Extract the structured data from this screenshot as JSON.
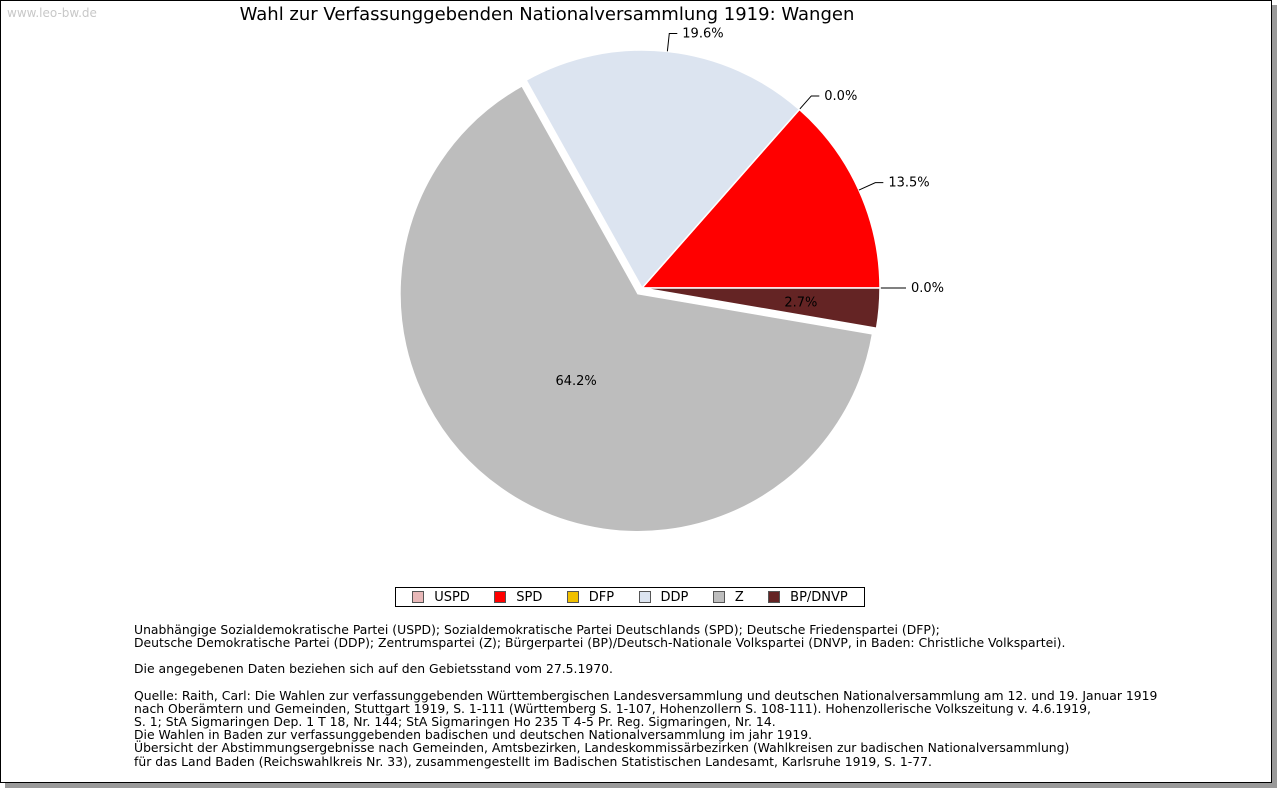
{
  "watermark": "www.leo-bw.de",
  "chart_data": {
    "type": "pie",
    "title": "Wahl zur Verfassunggebenden Nationalversammlung 1919: Wangen",
    "slices": [
      {
        "name": "USPD",
        "value": 0.0,
        "label": "0.0%",
        "color": "#e8b8b8"
      },
      {
        "name": "SPD",
        "value": 13.5,
        "label": "13.5%",
        "color": "#ff0000"
      },
      {
        "name": "DFP",
        "value": 0.0,
        "label": "0.0%",
        "color": "#f0c000"
      },
      {
        "name": "DDP",
        "value": 19.6,
        "label": "19.6%",
        "color": "#dce4f0"
      },
      {
        "name": "Z",
        "value": 64.2,
        "label": "64.2%",
        "color": "#bdbdbd"
      },
      {
        "name": "BP/DNVP",
        "value": 2.7,
        "label": "2.7%",
        "color": "#642424"
      }
    ],
    "legend": [
      "USPD",
      "SPD",
      "DFP",
      "DDP",
      "Z",
      "BP/DNVP"
    ],
    "legend_placement": "bottom"
  },
  "notes": {
    "parties_1": "Unabhängige Sozialdemokratische Partei (USPD); Sozialdemokratische Partei Deutschlands (SPD); Deutsche Friedenspartei (DFP);",
    "parties_2": "Deutsche Demokratische Partei (DDP); Zentrumspartei (Z); Bürgerpartei (BP)/Deutsch-Nationale Volkspartei (DNVP, in Baden: Christliche Volkspartei).",
    "territory": "Die angegebenen Daten beziehen sich auf den Gebietsstand vom 27.5.1970.",
    "source_1": "Quelle: Raith, Carl: Die Wahlen zur verfassunggebenden Württembergischen Landesversammlung und deutschen Nationalversammlung am 12. und 19. Januar 1919",
    "source_2": "nach Oberämtern und Gemeinden, Stuttgart 1919, S. 1-111 (Württemberg S. 1-107, Hohenzollern S. 108-111). Hohenzollerische Volkszeitung v. 4.6.1919,",
    "source_3": "S. 1; StA Sigmaringen Dep. 1 T 18, Nr. 144; StA Sigmaringen Ho 235 T 4-5 Pr. Reg. Sigmaringen, Nr. 14.",
    "source_4": "Die Wahlen in Baden zur verfassunggebenden badischen und deutschen Nationalversammlung im jahr 1919.",
    "source_5": "Übersicht der Abstimmungsergebnisse nach Gemeinden, Amtsbezirken, Landeskommissärbezirken (Wahlkreisen zur badischen Nationalversammlung)",
    "source_6": "für das Land Baden (Reichswahlkreis Nr. 33), zusammengestellt im Badischen Statistischen Landesamt, Karlsruhe 1919, S. 1-77."
  }
}
